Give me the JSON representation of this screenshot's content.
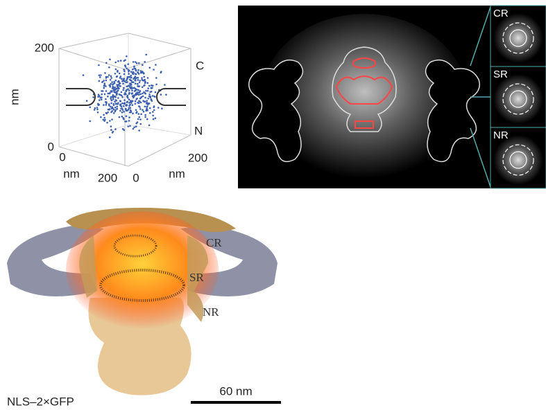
{
  "scatter_panel": {
    "y_axis": {
      "label": "nm",
      "ticks": [
        200,
        0
      ]
    },
    "x_axis": {
      "label": "nm",
      "ticks": [
        0,
        200
      ]
    },
    "z_axis": {
      "label": "nm",
      "ticks": [
        0,
        200
      ]
    },
    "annotations": [
      "C",
      "N"
    ]
  },
  "density_panel": {
    "insets": [
      "CR",
      "SR",
      "NR"
    ]
  },
  "structure_panel": {
    "labels": [
      "CR",
      "SR",
      "NR"
    ],
    "sample": "NLS–2×GFP",
    "scale_bar": "60 nm"
  }
}
